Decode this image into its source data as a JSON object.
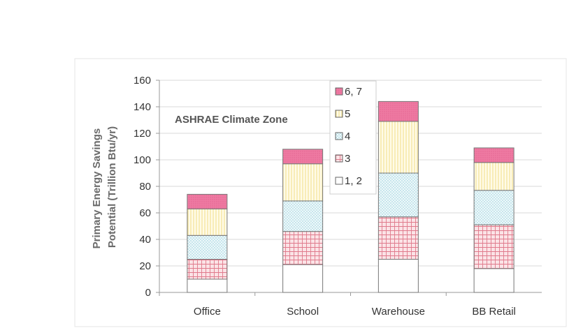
{
  "chart_data": {
    "type": "bar",
    "stacked": true,
    "title": "",
    "xlabel": "",
    "ylabel": "Primary Energy Savings Potential (Trillion Btu/yr)",
    "ylim": [
      0,
      160
    ],
    "yticks": [
      0,
      20,
      40,
      60,
      80,
      100,
      120,
      140,
      160
    ],
    "grid": true,
    "legend_title": "ASHRAE Climate Zone",
    "legend_position": "top-center",
    "categories": [
      "Office",
      "School",
      "Warehouse",
      "BB Retail"
    ],
    "series": [
      {
        "name": "1, 2",
        "values": [
          10,
          21,
          25,
          18
        ],
        "color": "#ffffff"
      },
      {
        "name": "3",
        "values": [
          15,
          25,
          32,
          33
        ],
        "color": "#f4c6cc"
      },
      {
        "name": "4",
        "values": [
          18,
          23,
          33,
          26
        ],
        "color": "#d9eef2"
      },
      {
        "name": "5",
        "values": [
          20,
          28,
          39,
          21
        ],
        "color": "#fff8d8"
      },
      {
        "name": "6, 7",
        "values": [
          11,
          11,
          15,
          11
        ],
        "color": "#ea6b96"
      }
    ]
  }
}
